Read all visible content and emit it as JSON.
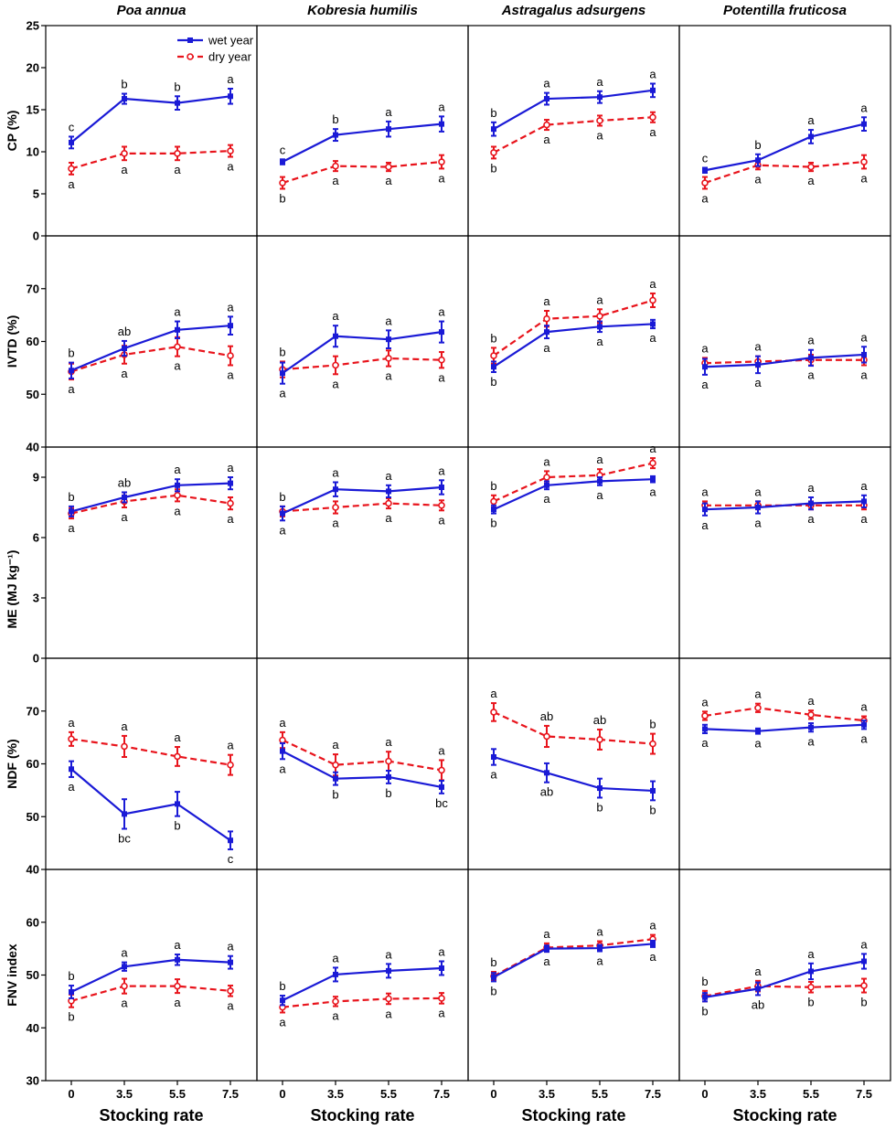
{
  "chart_data": {
    "type": "line",
    "x": [
      "0",
      "3.5",
      "5.5",
      "7.5"
    ],
    "xlabel": "Stocking rate",
    "species": [
      "Poa annua",
      "Kobresia humilis",
      "Astragalus adsurgens",
      "Potentilla fruticosa"
    ],
    "legend": [
      {
        "name": "wet year",
        "color": "#1a1ad6",
        "style": "solid"
      },
      {
        "name": "dry year",
        "color": "#e8141c",
        "style": "dashed"
      }
    ],
    "rows": [
      {
        "ylabel": "CP (%)",
        "ylim": [
          0,
          25
        ],
        "ticks": [
          "0",
          "5",
          "10",
          "15",
          "20",
          "25"
        ],
        "tick_values": [
          0,
          5,
          10,
          15,
          20,
          25
        ],
        "panels": [
          {
            "wet": [
              11.1,
              16.3,
              15.8,
              16.6
            ],
            "wet_err": [
              0.7,
              0.6,
              0.8,
              0.9
            ],
            "wet_letters": [
              "c",
              "b",
              "b",
              "a"
            ],
            "dry": [
              8.0,
              9.8,
              9.8,
              10.1
            ],
            "dry_err": [
              0.7,
              0.8,
              0.8,
              0.7
            ],
            "dry_letters": [
              "a",
              "a",
              "a",
              "a"
            ]
          },
          {
            "wet": [
              8.8,
              12.0,
              12.7,
              13.3
            ],
            "wet_err": [
              0.3,
              0.7,
              0.9,
              0.9
            ],
            "wet_letters": [
              "c",
              "b",
              "a",
              "a"
            ],
            "dry": [
              6.3,
              8.3,
              8.2,
              8.8
            ],
            "dry_err": [
              0.7,
              0.6,
              0.5,
              0.8
            ],
            "dry_letters": [
              "b",
              "a",
              "a",
              "a"
            ]
          },
          {
            "wet": [
              12.7,
              16.3,
              16.5,
              17.3
            ],
            "wet_err": [
              0.8,
              0.7,
              0.7,
              0.8
            ],
            "wet_letters": [
              "b",
              "a",
              "a",
              "a"
            ],
            "dry": [
              9.9,
              13.2,
              13.7,
              14.1
            ],
            "dry_err": [
              0.7,
              0.6,
              0.6,
              0.6
            ],
            "dry_letters": [
              "b",
              "a",
              "a",
              "a"
            ]
          },
          {
            "wet": [
              7.8,
              9.0,
              11.8,
              13.3
            ],
            "wet_err": [
              0.3,
              0.7,
              0.8,
              0.8
            ],
            "wet_letters": [
              "c",
              "b",
              "a",
              "a"
            ],
            "dry": [
              6.3,
              8.4,
              8.2,
              8.8
            ],
            "dry_err": [
              0.7,
              0.5,
              0.5,
              0.8
            ],
            "dry_letters": [
              "a",
              "a",
              "a",
              "a"
            ]
          }
        ]
      },
      {
        "ylabel": "IVTD (%)",
        "ylim": [
          40,
          80
        ],
        "ticks": [
          "40",
          "50",
          "60",
          "70"
        ],
        "tick_values": [
          40,
          50,
          60,
          70
        ],
        "panels": [
          {
            "wet": [
              54.5,
              58.7,
              62.2,
              63.0
            ],
            "wet_err": [
              1.5,
              1.4,
              1.6,
              1.7
            ],
            "wet_letters": [
              "b",
              "ab",
              "a",
              "a"
            ],
            "dry": [
              54.3,
              57.5,
              59.0,
              57.3
            ],
            "dry_err": [
              1.5,
              1.7,
              1.8,
              1.8
            ],
            "dry_letters": [
              "a",
              "a",
              "a",
              "a"
            ]
          },
          {
            "wet": [
              54.0,
              61.0,
              60.4,
              61.8
            ],
            "wet_err": [
              2.0,
              2.0,
              1.7,
              2.0
            ],
            "wet_letters": [
              "a",
              "a",
              "a",
              "a"
            ],
            "dry": [
              54.7,
              55.5,
              56.8,
              56.5
            ],
            "dry_err": [
              1.5,
              1.7,
              1.5,
              1.5
            ],
            "dry_letters": [
              "b",
              "a",
              "a",
              "a"
            ]
          },
          {
            "wet": [
              55.2,
              61.8,
              62.8,
              63.3
            ],
            "wet_err": [
              1.0,
              1.2,
              1.0,
              0.8
            ],
            "wet_letters": [
              "b",
              "a",
              "a",
              "a"
            ],
            "dry": [
              57.3,
              64.3,
              64.8,
              67.8
            ],
            "dry_err": [
              1.5,
              1.5,
              1.3,
              1.3
            ],
            "dry_letters": [
              "b",
              "a",
              "a",
              "a"
            ]
          },
          {
            "wet": [
              55.2,
              55.6,
              56.9,
              57.5
            ],
            "wet_err": [
              1.5,
              1.6,
              1.5,
              1.5
            ],
            "wet_letters": [
              "a",
              "a",
              "a",
              "a"
            ],
            "dry": [
              55.9,
              56.2,
              56.5,
              56.5
            ],
            "dry_err": [
              1.0,
              1.0,
              1.0,
              1.0
            ],
            "dry_letters": [
              "a",
              "a",
              "a",
              "a"
            ]
          }
        ]
      },
      {
        "ylabel": "ME (MJ kg⁻¹)",
        "ylim": [
          0,
          10.5
        ],
        "ticks": [
          "0",
          "3",
          "6",
          "9"
        ],
        "tick_values": [
          0,
          3,
          6,
          9
        ],
        "panels": [
          {
            "wet": [
              7.3,
              8.0,
              8.6,
              8.7
            ],
            "wet_err": [
              0.25,
              0.25,
              0.3,
              0.3
            ],
            "wet_letters": [
              "b",
              "ab",
              "a",
              "a"
            ],
            "dry": [
              7.2,
              7.8,
              8.1,
              7.7
            ],
            "dry_err": [
              0.25,
              0.3,
              0.3,
              0.3
            ],
            "dry_letters": [
              "a",
              "a",
              "a",
              "a"
            ]
          },
          {
            "wet": [
              7.2,
              8.4,
              8.3,
              8.5
            ],
            "wet_err": [
              0.35,
              0.35,
              0.3,
              0.35
            ],
            "wet_letters": [
              "a",
              "a",
              "a",
              "a"
            ],
            "dry": [
              7.3,
              7.5,
              7.7,
              7.6
            ],
            "dry_err": [
              0.25,
              0.3,
              0.25,
              0.25
            ],
            "dry_letters": [
              "b",
              "a",
              "a",
              "a"
            ]
          },
          {
            "wet": [
              7.4,
              8.6,
              8.8,
              8.9
            ],
            "wet_err": [
              0.2,
              0.2,
              0.2,
              0.15
            ],
            "wet_letters": [
              "b",
              "a",
              "a",
              "a"
            ],
            "dry": [
              7.8,
              9.0,
              9.1,
              9.7
            ],
            "dry_err": [
              0.3,
              0.3,
              0.3,
              0.25
            ],
            "dry_letters": [
              "b",
              "a",
              "a",
              "a"
            ]
          },
          {
            "wet": [
              7.4,
              7.5,
              7.7,
              7.8
            ],
            "wet_err": [
              0.3,
              0.3,
              0.3,
              0.3
            ],
            "wet_letters": [
              "a",
              "a",
              "a",
              "a"
            ],
            "dry": [
              7.6,
              7.6,
              7.6,
              7.6
            ],
            "dry_err": [
              0.2,
              0.2,
              0.2,
              0.2
            ],
            "dry_letters": [
              "a",
              "a",
              "a",
              "a"
            ]
          }
        ]
      },
      {
        "ylabel": "NDF (%)",
        "ylim": [
          40,
          80
        ],
        "ticks": [
          "40",
          "50",
          "60",
          "70"
        ],
        "tick_values": [
          40,
          50,
          60,
          70
        ],
        "panels": [
          {
            "wet": [
              59.0,
              50.5,
              52.4,
              45.5
            ],
            "wet_err": [
              1.5,
              2.8,
              2.3,
              1.7
            ],
            "wet_letters": [
              "a",
              "bc",
              "b",
              "c"
            ],
            "dry": [
              64.7,
              63.3,
              61.4,
              59.8
            ],
            "dry_err": [
              1.3,
              2.0,
              1.8,
              1.9
            ],
            "dry_letters": [
              "a",
              "a",
              "a",
              "a"
            ]
          },
          {
            "wet": [
              62.4,
              57.2,
              57.5,
              55.6
            ],
            "wet_err": [
              1.5,
              1.2,
              1.2,
              1.2
            ],
            "wet_letters": [
              "a",
              "b",
              "b",
              "bc"
            ],
            "dry": [
              64.5,
              59.8,
              60.5,
              58.8
            ],
            "dry_err": [
              1.5,
              2.0,
              1.8,
              1.9
            ],
            "dry_letters": [
              "a",
              "a",
              "a",
              "a"
            ]
          },
          {
            "wet": [
              61.3,
              58.3,
              55.4,
              54.9
            ],
            "wet_err": [
              1.5,
              1.8,
              1.8,
              1.8
            ],
            "wet_letters": [
              "a",
              "ab",
              "b",
              "b"
            ],
            "dry": [
              69.8,
              65.2,
              64.6,
              63.8
            ],
            "dry_err": [
              1.7,
              2.0,
              1.9,
              1.9
            ],
            "dry_letters": [
              "a",
              "ab",
              "ab",
              "b"
            ]
          },
          {
            "wet": [
              66.6,
              66.2,
              66.9,
              67.4
            ],
            "wet_err": [
              0.8,
              0.5,
              0.8,
              0.8
            ],
            "wet_letters": [
              "a",
              "a",
              "a",
              "a"
            ],
            "dry": [
              69.1,
              70.6,
              69.3,
              68.2
            ],
            "dry_err": [
              0.8,
              0.8,
              0.8,
              0.8
            ],
            "dry_letters": [
              "a",
              "a",
              "a",
              "a"
            ]
          }
        ]
      },
      {
        "ylabel": "FNV index",
        "ylim": [
          30,
          70
        ],
        "ticks": [
          "30",
          "40",
          "50",
          "60"
        ],
        "tick_values": [
          30,
          40,
          50,
          60
        ],
        "panels": [
          {
            "wet": [
              46.8,
              51.6,
              52.9,
              52.4
            ],
            "wet_err": [
              1.2,
              0.8,
              1.0,
              1.2
            ],
            "wet_letters": [
              "b",
              "a",
              "a",
              "a"
            ],
            "dry": [
              45.1,
              47.9,
              47.9,
              47.0
            ],
            "dry_err": [
              1.2,
              1.4,
              1.3,
              1.0
            ],
            "dry_letters": [
              "b",
              "a",
              "a",
              "a"
            ]
          },
          {
            "wet": [
              45.2,
              50.1,
              50.8,
              51.3
            ],
            "wet_err": [
              0.9,
              1.3,
              1.3,
              1.3
            ],
            "wet_letters": [
              "b",
              "a",
              "a",
              "a"
            ],
            "dry": [
              43.9,
              45.0,
              45.5,
              45.6
            ],
            "dry_err": [
              1.0,
              0.9,
              1.0,
              1.0
            ],
            "dry_letters": [
              "a",
              "a",
              "a",
              "a"
            ]
          },
          {
            "wet": [
              49.6,
              55.0,
              55.1,
              55.9
            ],
            "wet_err": [
              0.8,
              0.6,
              0.6,
              0.6
            ],
            "wet_letters": [
              "b",
              "a",
              "a",
              "a"
            ],
            "dry": [
              49.8,
              55.2,
              55.6,
              56.8
            ],
            "dry_err": [
              0.8,
              0.8,
              0.8,
              0.8
            ],
            "dry_letters": [
              "b",
              "a",
              "a",
              "a"
            ]
          },
          {
            "wet": [
              45.8,
              47.4,
              50.7,
              52.6
            ],
            "wet_err": [
              0.8,
              1.2,
              1.5,
              1.4
            ],
            "wet_letters": [
              "b",
              "ab",
              "a",
              "a"
            ],
            "dry": [
              46.0,
              47.9,
              47.7,
              48.0
            ],
            "dry_err": [
              1.0,
              1.0,
              1.0,
              1.3
            ],
            "dry_letters": [
              "b",
              "a",
              "b",
              "b"
            ]
          }
        ]
      }
    ]
  }
}
